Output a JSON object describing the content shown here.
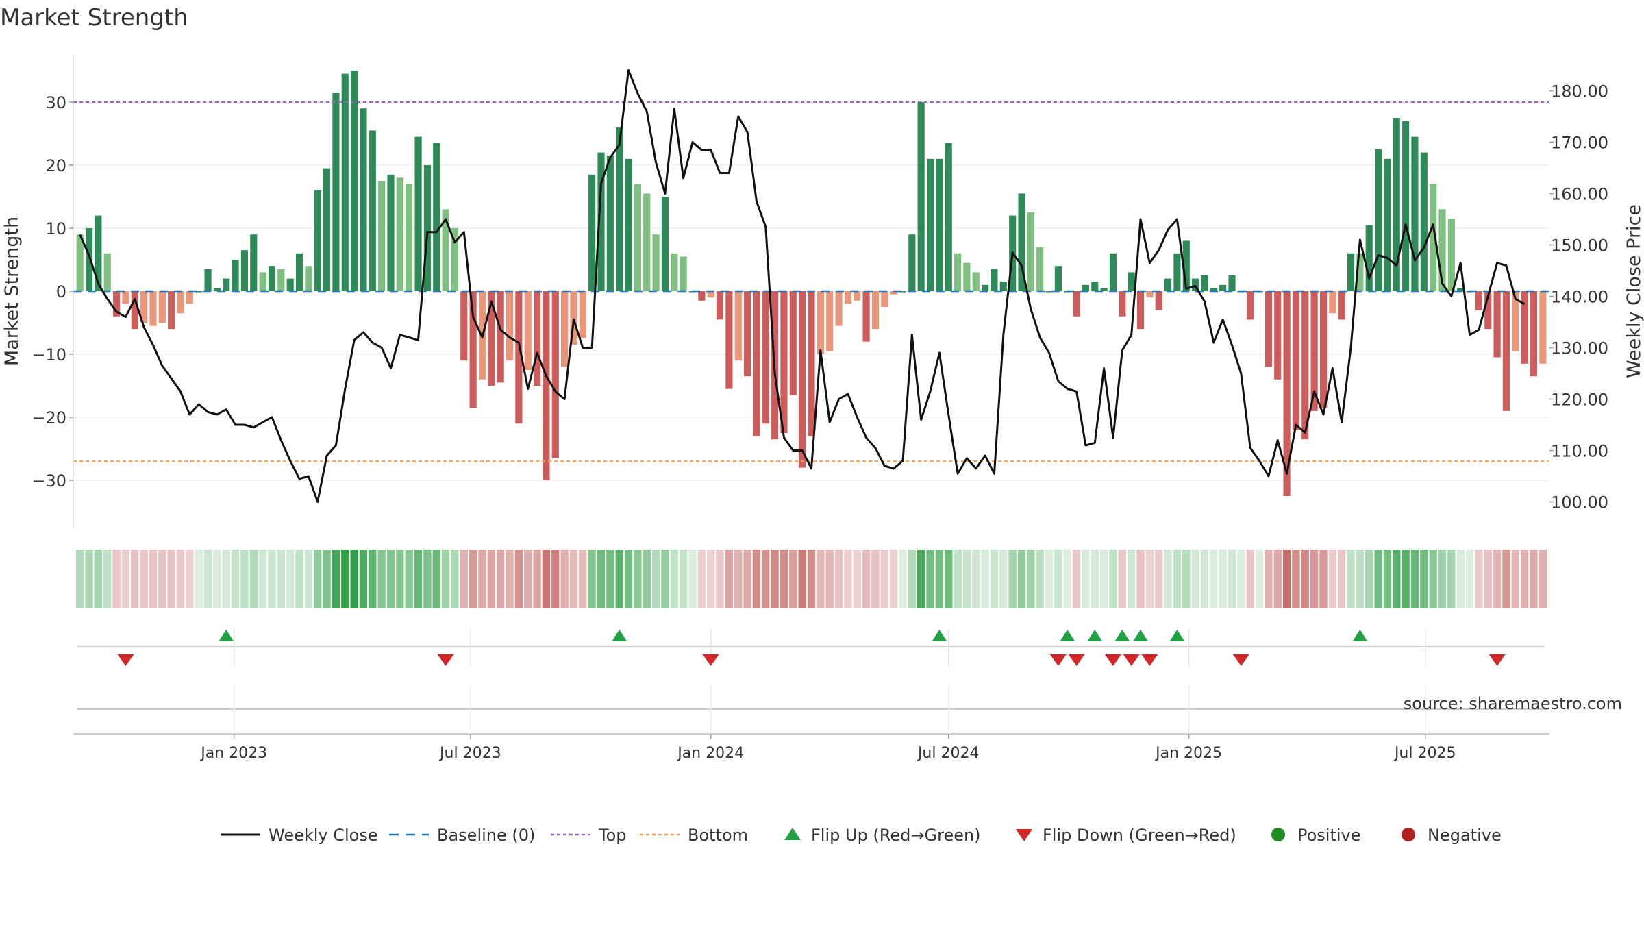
{
  "chart_data": {
    "type": "bar+line",
    "title": "Market Strength",
    "ylabel": "Market Strength",
    "y2label": "Weekly Close Price",
    "source": "source: sharemaestro.com",
    "ylim": [
      -37.5,
      37.5
    ],
    "y2lim": [
      95,
      187
    ],
    "yticks": [
      30,
      20,
      10,
      0,
      -10,
      -20,
      -30
    ],
    "ytick_labels": [
      "30",
      "20",
      "10",
      "0",
      "−10",
      "−20",
      "−30"
    ],
    "y2ticks": [
      180,
      170,
      160,
      150,
      140,
      130,
      120,
      110,
      100
    ],
    "y2tick_labels": [
      "180.00",
      "170.00",
      "160.00",
      "150.00",
      "140.00",
      "130.00",
      "120.00",
      "110.00",
      "100.00"
    ],
    "top_line": 30,
    "bottom_line": -27,
    "x_start": "2022-09-05",
    "x_end": "2025-09-29",
    "xtick_dates": [
      "2023-01-01",
      "2023-07-01",
      "2024-01-01",
      "2024-07-01",
      "2025-01-01",
      "2025-07-01"
    ],
    "xtick_labels": [
      "Jan 2023",
      "Jul 2023",
      "Jan 2024",
      "Jul 2024",
      "Jan 2025",
      "Jul 2025"
    ],
    "strength": [
      9,
      10,
      12,
      6,
      -4,
      -2,
      -6,
      -5,
      -5.5,
      -5,
      -6,
      -3.5,
      -2,
      0,
      3.5,
      0.5,
      2,
      5,
      6.5,
      9,
      3,
      4,
      3.5,
      2,
      6,
      4,
      16,
      19.5,
      31.5,
      34.5,
      35,
      29,
      25.5,
      17.5,
      18.5,
      18,
      17,
      24.5,
      20,
      23.5,
      13,
      10,
      -11,
      -18.5,
      -14,
      -15,
      -14.5,
      -11,
      -21,
      -12.5,
      -15,
      -30,
      -26.5,
      -12,
      -8.5,
      -7.5,
      18.5,
      22,
      21.5,
      26,
      21,
      17,
      15.5,
      9,
      15,
      6,
      5.5,
      0,
      -1.5,
      -1,
      -4.5,
      -15.5,
      -11,
      -13.5,
      -23,
      -21,
      -23.5,
      -22.5,
      -16.5,
      -28,
      -23,
      -10,
      -9.5,
      -5.5,
      -2,
      -1.5,
      -8,
      -6,
      -2.5,
      -0.5,
      0,
      9,
      30,
      21,
      21,
      23.5,
      6,
      4.5,
      3,
      1,
      3.5,
      1.5,
      12,
      15.5,
      12.5,
      7,
      0,
      4,
      0,
      -4,
      1,
      1.5,
      0.5,
      6,
      -4,
      3,
      -6,
      -1,
      -3,
      2,
      6,
      8,
      2,
      2.5,
      0.5,
      1,
      2.5,
      0,
      -4.5,
      0,
      -12,
      -14,
      -32.5,
      -22,
      -23.5,
      -19,
      -18.5,
      -3.5,
      -4.5,
      6,
      6,
      10.5,
      22.5,
      21,
      27.5,
      27,
      24.5,
      22,
      17,
      13,
      11.5,
      0.5,
      0,
      -3,
      -6,
      -10.5,
      -19,
      -9.5,
      -11.5,
      -13.5,
      -11.5
    ],
    "weekly_close": [
      152,
      148,
      142.5,
      139.5,
      137,
      136,
      139.5,
      134,
      130.5,
      126.5,
      124,
      121.5,
      117,
      119,
      117.5,
      117,
      118,
      115,
      115,
      114.5,
      115.5,
      116.5,
      112,
      108,
      104.5,
      105,
      100,
      109,
      111,
      122,
      131.5,
      133,
      131,
      130,
      126,
      132.5,
      132,
      131.5,
      152.5,
      152.5,
      155,
      150.5,
      152.5,
      136,
      132,
      139,
      133.5,
      132,
      131,
      122,
      129,
      124.5,
      121.5,
      120,
      135.5,
      130,
      130,
      162,
      167,
      169.5,
      184,
      179.5,
      176,
      166,
      160,
      176.5,
      163,
      170,
      168.5,
      168.5,
      164,
      164,
      175,
      172,
      158.5,
      153.5,
      125,
      112.5,
      110,
      110,
      106.5,
      129.5,
      115.5,
      120,
      121,
      116.5,
      112.5,
      110.5,
      107,
      106.5,
      108,
      132.5,
      116,
      121.5,
      129,
      117,
      105.5,
      108.5,
      106.5,
      109,
      105.5,
      132.5,
      148.5,
      146,
      137.5,
      132,
      129,
      123.5,
      122,
      121.5,
      111,
      111.5,
      126,
      112.5,
      129.5,
      132.5,
      155,
      146.5,
      149,
      153,
      155,
      141.5,
      142,
      139,
      131,
      135.5,
      130.5,
      125,
      110.5,
      108,
      105,
      112,
      105.5,
      115,
      113.5,
      121.5,
      117,
      126,
      115.5,
      130,
      151,
      143.5,
      148,
      147.5,
      146,
      154,
      147,
      149.5,
      154,
      142.5,
      140,
      146.5,
      132.5,
      133.5,
      140,
      146.5,
      146,
      139.5,
      138.5
    ],
    "flip_up_dates": [
      "2022-12-26",
      "2023-10-23",
      "2024-06-24",
      "2024-09-30",
      "2024-10-21",
      "2024-11-11",
      "2024-11-25",
      "2024-12-23",
      "2025-05-12"
    ],
    "flip_down_dates": [
      "2022-10-10",
      "2023-06-12",
      "2024-01-01",
      "2024-09-23",
      "2024-10-07",
      "2024-11-04",
      "2024-11-18",
      "2024-12-02",
      "2025-02-10",
      "2025-08-25"
    ],
    "legend": [
      {
        "label": "Weekly Close",
        "kind": "line"
      },
      {
        "label": "Baseline (0)",
        "kind": "dash"
      },
      {
        "label": "Top",
        "kind": "dotted-top"
      },
      {
        "label": "Bottom",
        "kind": "dotted-bottom"
      },
      {
        "label": "Flip Up (Red→Green)",
        "kind": "tri-up"
      },
      {
        "label": "Flip Down (Green→Red)",
        "kind": "tri-down"
      },
      {
        "label": "Positive",
        "kind": "dot-pos"
      },
      {
        "label": "Negative",
        "kind": "dot-neg"
      }
    ],
    "colors": {
      "pos_dark": "#2e8b57",
      "pos_light": "#7fbf7f",
      "neg_dark": "#cd5c5c",
      "neg_light": "#e9967a",
      "line": "#111111",
      "baseline": "#1f77b4",
      "top": "#9467bd",
      "bottom": "#f0a050",
      "flip_up": "#22a045",
      "flip_down": "#d62728",
      "legend_pos": "#228b22",
      "legend_neg": "#b22222"
    }
  }
}
